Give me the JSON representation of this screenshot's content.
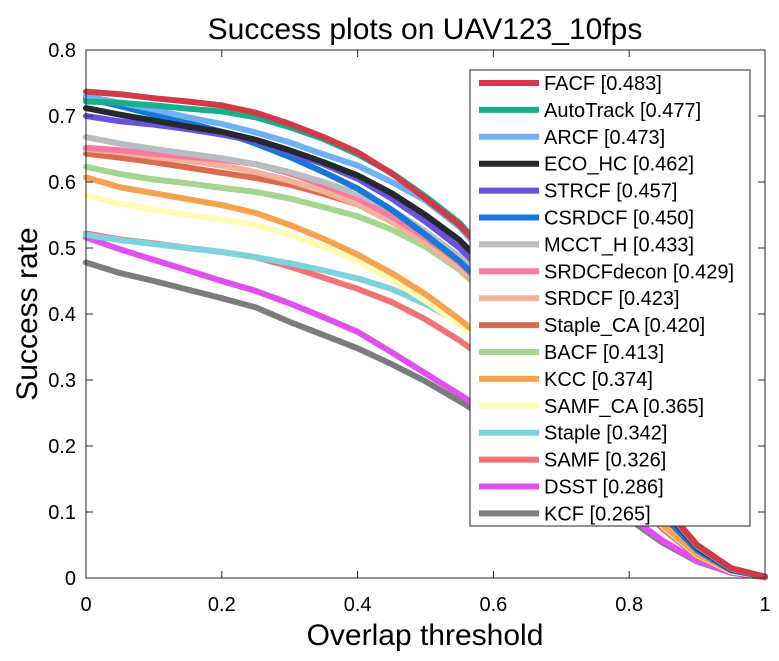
{
  "chart_data": {
    "type": "line",
    "title": "Success plots on UAV123_10fps",
    "xlabel": "Overlap threshold",
    "ylabel": "Success rate",
    "xlim": [
      0,
      1
    ],
    "ylim": [
      0,
      0.8
    ],
    "x_ticks": [
      "0",
      "0.2",
      "0.4",
      "0.6",
      "0.8",
      "1"
    ],
    "y_ticks": [
      "0",
      "0.1",
      "0.2",
      "0.3",
      "0.4",
      "0.5",
      "0.6",
      "0.7",
      "0.8"
    ],
    "grid": false,
    "legend_position": "top-right",
    "x": [
      0,
      0.05,
      0.1,
      0.15,
      0.2,
      0.25,
      0.3,
      0.35,
      0.4,
      0.45,
      0.5,
      0.55,
      0.6,
      0.65,
      0.7,
      0.75,
      0.8,
      0.85,
      0.9,
      0.95,
      1.0
    ],
    "series": [
      {
        "name": "FACF [0.483]",
        "color": "#d23a4a",
        "values": [
          0.737,
          0.733,
          0.727,
          0.722,
          0.716,
          0.705,
          0.688,
          0.668,
          0.645,
          0.613,
          0.575,
          0.535,
          0.48,
          0.42,
          0.35,
          0.27,
          0.19,
          0.11,
          0.05,
          0.015,
          0.002
        ]
      },
      {
        "name": "AutoTrack [0.477]",
        "color": "#17b08a",
        "values": [
          0.722,
          0.72,
          0.716,
          0.711,
          0.707,
          0.698,
          0.683,
          0.665,
          0.642,
          0.614,
          0.578,
          0.538,
          0.48,
          0.42,
          0.35,
          0.27,
          0.19,
          0.11,
          0.05,
          0.015,
          0.002
        ]
      },
      {
        "name": "ARCF [0.473]",
        "color": "#6fb1f2",
        "values": [
          0.73,
          0.72,
          0.71,
          0.698,
          0.688,
          0.675,
          0.66,
          0.642,
          0.625,
          0.6,
          0.572,
          0.532,
          0.475,
          0.415,
          0.345,
          0.265,
          0.185,
          0.108,
          0.048,
          0.014,
          0.002
        ]
      },
      {
        "name": "ECO_HC [0.462]",
        "color": "#24292e",
        "values": [
          0.712,
          0.702,
          0.693,
          0.684,
          0.676,
          0.664,
          0.648,
          0.63,
          0.61,
          0.583,
          0.55,
          0.512,
          0.46,
          0.4,
          0.33,
          0.255,
          0.18,
          0.105,
          0.046,
          0.013,
          0.002
        ]
      },
      {
        "name": "STRCF [0.457]",
        "color": "#6a52dc",
        "values": [
          0.7,
          0.692,
          0.687,
          0.68,
          0.672,
          0.662,
          0.645,
          0.627,
          0.605,
          0.575,
          0.54,
          0.5,
          0.45,
          0.39,
          0.322,
          0.248,
          0.175,
          0.1,
          0.045,
          0.013,
          0.002
        ]
      },
      {
        "name": "CSRDCF [0.450]",
        "color": "#1678d8",
        "values": [
          0.727,
          0.715,
          0.702,
          0.69,
          0.676,
          0.658,
          0.638,
          0.615,
          0.59,
          0.558,
          0.52,
          0.48,
          0.43,
          0.37,
          0.305,
          0.235,
          0.165,
          0.095,
          0.042,
          0.012,
          0.002
        ]
      },
      {
        "name": "MCCT_H [0.433]",
        "color": "#b7bdc2",
        "values": [
          0.668,
          0.658,
          0.65,
          0.643,
          0.636,
          0.627,
          0.615,
          0.6,
          0.582,
          0.558,
          0.525,
          0.487,
          0.44,
          0.383,
          0.318,
          0.245,
          0.172,
          0.1,
          0.044,
          0.013,
          0.002
        ]
      },
      {
        "name": "SRDCFdecon [0.429]",
        "color": "#f77aa2",
        "values": [
          0.652,
          0.648,
          0.643,
          0.638,
          0.634,
          0.627,
          0.613,
          0.595,
          0.575,
          0.548,
          0.516,
          0.478,
          0.43,
          0.375,
          0.31,
          0.24,
          0.168,
          0.098,
          0.043,
          0.013,
          0.002
        ]
      },
      {
        "name": "SRDCF [0.423]",
        "color": "#f3b29a",
        "values": [
          0.65,
          0.645,
          0.638,
          0.632,
          0.625,
          0.615,
          0.602,
          0.586,
          0.566,
          0.54,
          0.508,
          0.47,
          0.425,
          0.37,
          0.306,
          0.236,
          0.165,
          0.096,
          0.042,
          0.012,
          0.002
        ]
      },
      {
        "name": "Staple_CA [0.420]",
        "color": "#dc6a4e",
        "values": [
          0.643,
          0.637,
          0.63,
          0.622,
          0.614,
          0.606,
          0.596,
          0.582,
          0.566,
          0.54,
          0.508,
          0.47,
          0.424,
          0.368,
          0.304,
          0.234,
          0.164,
          0.095,
          0.042,
          0.012,
          0.002
        ]
      },
      {
        "name": "BACF [0.413]",
        "color": "#a6d58f",
        "values": [
          0.623,
          0.612,
          0.604,
          0.598,
          0.591,
          0.585,
          0.575,
          0.562,
          0.548,
          0.528,
          0.502,
          0.467,
          0.42,
          0.365,
          0.3,
          0.232,
          0.162,
          0.094,
          0.041,
          0.012,
          0.002
        ]
      },
      {
        "name": "KCC [0.374]",
        "color": "#f6a24e",
        "values": [
          0.607,
          0.592,
          0.583,
          0.574,
          0.565,
          0.553,
          0.535,
          0.514,
          0.49,
          0.462,
          0.43,
          0.392,
          0.35,
          0.3,
          0.245,
          0.19,
          0.135,
          0.08,
          0.036,
          0.011,
          0.002
        ]
      },
      {
        "name": "SAMF_CA [0.365]",
        "color": "#fffcb8",
        "values": [
          0.58,
          0.567,
          0.558,
          0.55,
          0.543,
          0.535,
          0.52,
          0.502,
          0.48,
          0.452,
          0.42,
          0.384,
          0.343,
          0.295,
          0.242,
          0.187,
          0.132,
          0.078,
          0.035,
          0.01,
          0.002
        ]
      },
      {
        "name": "Staple [0.342]",
        "color": "#7cd3dc",
        "values": [
          0.52,
          0.512,
          0.506,
          0.5,
          0.494,
          0.486,
          0.477,
          0.466,
          0.454,
          0.438,
          0.415,
          0.387,
          0.35,
          0.305,
          0.252,
          0.195,
          0.137,
          0.08,
          0.036,
          0.011,
          0.002
        ]
      },
      {
        "name": "SAMF [0.326]",
        "color": "#f17373",
        "values": [
          0.522,
          0.513,
          0.507,
          0.5,
          0.494,
          0.486,
          0.472,
          0.455,
          0.438,
          0.418,
          0.392,
          0.36,
          0.322,
          0.278,
          0.23,
          0.178,
          0.125,
          0.074,
          0.033,
          0.01,
          0.002
        ]
      },
      {
        "name": "DSST [0.286]",
        "color": "#e04ff0",
        "values": [
          0.516,
          0.498,
          0.482,
          0.466,
          0.45,
          0.435,
          0.416,
          0.395,
          0.373,
          0.342,
          0.31,
          0.278,
          0.245,
          0.21,
          0.172,
          0.133,
          0.094,
          0.056,
          0.026,
          0.008,
          0.001
        ]
      },
      {
        "name": "KCF [0.265]",
        "color": "#7b7c7e",
        "values": [
          0.478,
          0.462,
          0.45,
          0.437,
          0.424,
          0.41,
          0.388,
          0.368,
          0.348,
          0.324,
          0.298,
          0.268,
          0.236,
          0.2,
          0.163,
          0.126,
          0.089,
          0.053,
          0.025,
          0.008,
          0.001
        ]
      }
    ]
  }
}
